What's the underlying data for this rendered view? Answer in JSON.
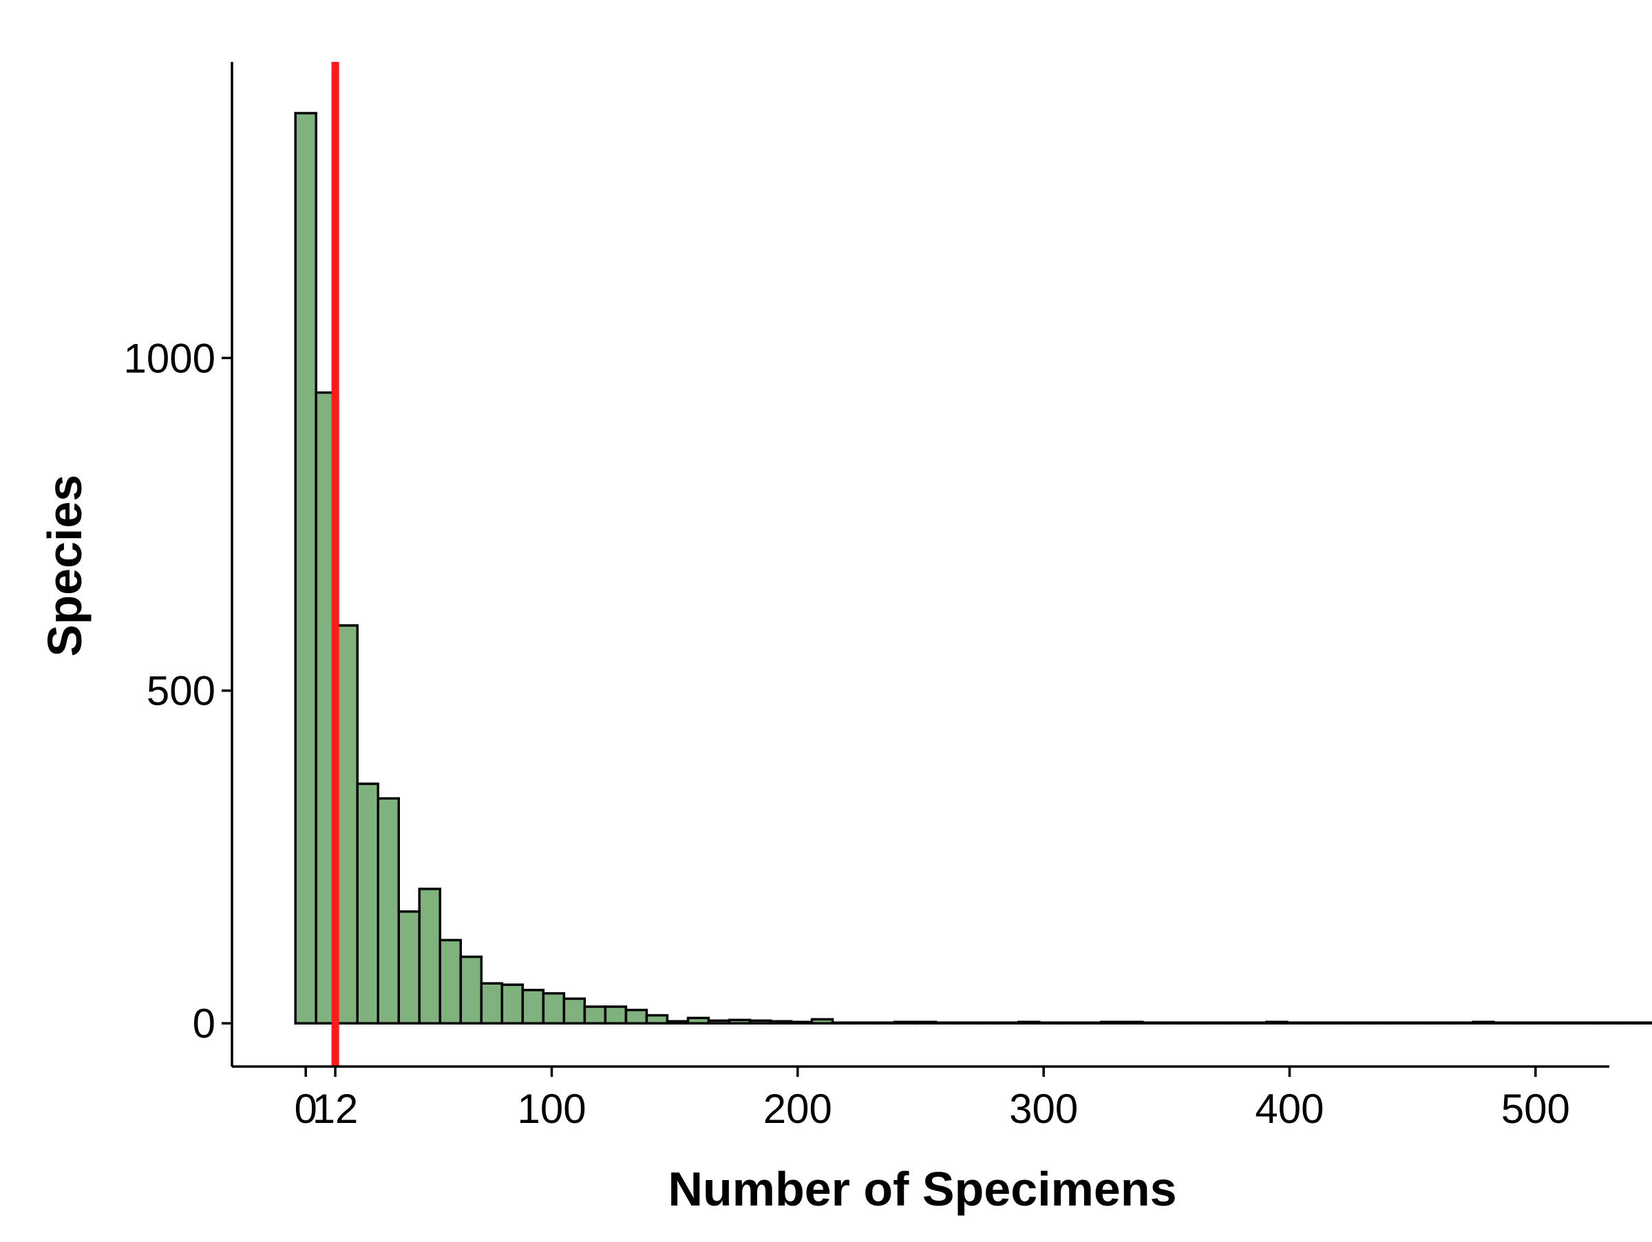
{
  "chart_data": {
    "type": "bar",
    "subtype": "histogram",
    "xlabel": "Number of Specimens",
    "ylabel": "Species",
    "xlim": [
      -30,
      530
    ],
    "ylim": [
      -65,
      1445
    ],
    "x_ticks": [
      0,
      12,
      100,
      200,
      300,
      400,
      500
    ],
    "x_tick_labels": [
      "0",
      "12",
      "100",
      "200",
      "300",
      "400",
      "500"
    ],
    "y_ticks": [
      0,
      500,
      1000
    ],
    "y_tick_labels": [
      "0",
      "500",
      "1000"
    ],
    "grid": false,
    "legend": "none",
    "bin_width": 8.4,
    "bin_start": -4.2,
    "bin_counts": [
      1368,
      948,
      598,
      360,
      338,
      168,
      202,
      125,
      100,
      60,
      58,
      50,
      45,
      37,
      25,
      25,
      20,
      12,
      3,
      8,
      4,
      5,
      4,
      3,
      2,
      6,
      1,
      1,
      1,
      2,
      2,
      1,
      1,
      1,
      1,
      2,
      1,
      1,
      1,
      2,
      2,
      1,
      1,
      1,
      1,
      1,
      1,
      2,
      1,
      1,
      1,
      1,
      1,
      1,
      1,
      1,
      1,
      2,
      1,
      1,
      1,
      1,
      1,
      1,
      1,
      1,
      1,
      1,
      1,
      1,
      1,
      3
    ],
    "reference_line": {
      "x": 12,
      "color": "#ff1a1a"
    },
    "bar_fill": "#80b27e",
    "bar_stroke": "#000000"
  }
}
